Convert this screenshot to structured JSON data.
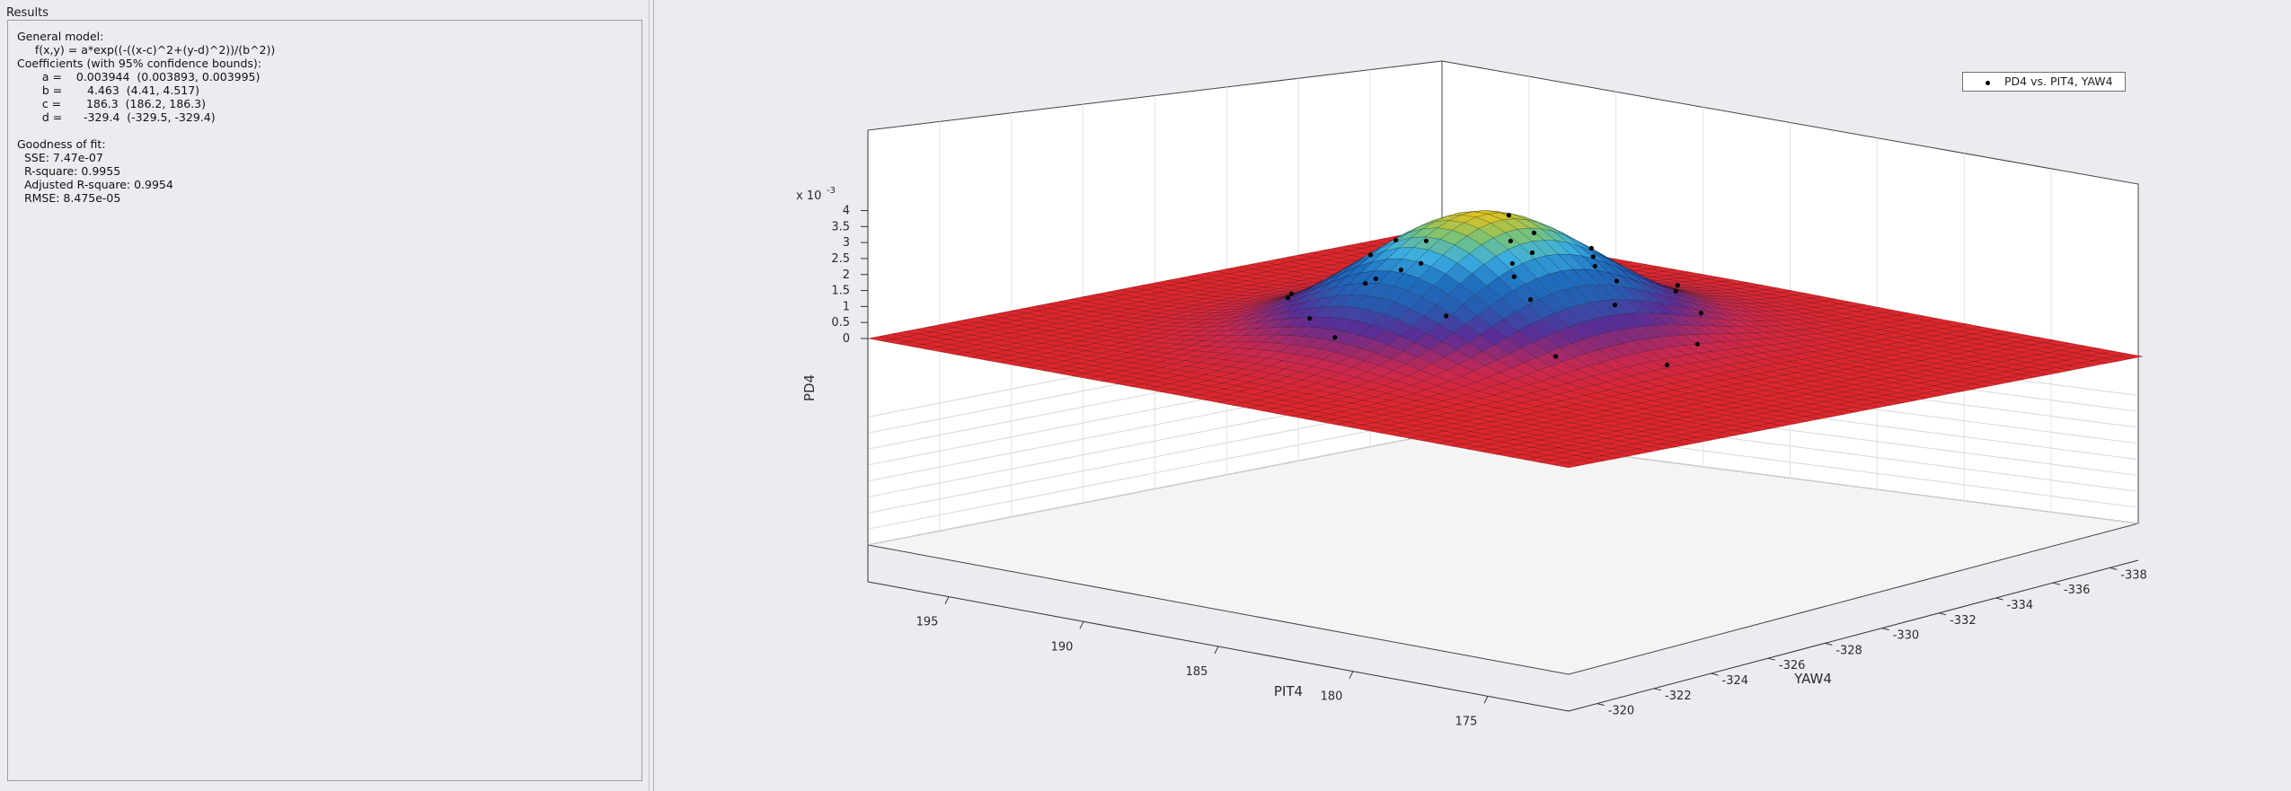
{
  "results": {
    "title": "Results",
    "lines": [
      "General model:",
      "     f(x,y) = a*exp((-((x-c)^2+(y-d)^2))/(b^2))",
      "Coefficients (with 95% confidence bounds):",
      "       a =    0.003944  (0.003893, 0.003995)",
      "       b =       4.463  (4.41, 4.517)",
      "       c =       186.3  (186.2, 186.3)",
      "       d =      -329.4  (-329.5, -329.4)",
      "",
      "Goodness of fit:",
      "  SSE: 7.47e-07",
      "  R-square: 0.9955",
      "  Adjusted R-square: 0.9954",
      "  RMSE: 8.475e-05"
    ]
  },
  "plot": {
    "legend": "PD4 vs. PIT4, YAW4",
    "zlabel": "PD4",
    "xlabel": "PIT4",
    "ylabel": "YAW4",
    "z_exponent_base": "x 10",
    "z_exponent_power": "-3",
    "z_ticks": [
      "0",
      "0.5",
      "1",
      "1.5",
      "2",
      "2.5",
      "3",
      "3.5",
      "4"
    ],
    "x_ticks": [
      "195",
      "190",
      "185",
      "180",
      "175"
    ],
    "y_ticks": [
      "-320",
      "-322",
      "-324",
      "-326",
      "-328",
      "-330",
      "-332",
      "-334",
      "-336",
      "-338"
    ]
  },
  "chart_data": {
    "type": "surface",
    "zlabel": "PD4",
    "xlabel": "PIT4",
    "ylabel": "YAW4",
    "z_scale": "x 10^-3",
    "xlim": [
      172,
      198
    ],
    "ylim": [
      -339,
      -319
    ],
    "zlim": [
      0,
      0.004
    ],
    "model": {
      "a": 0.003944,
      "b": 4.463,
      "c": 186.3,
      "d": -329.4
    },
    "colors": {
      "low": "#e0262b",
      "mid_low": "#3a2d8c",
      "mid": "#1f6fb8",
      "mid_high": "#3db3e3",
      "high": "#f2c20f"
    },
    "legend": "PD4 vs. PIT4, YAW4",
    "grid": true,
    "legend_position": "top-right"
  }
}
